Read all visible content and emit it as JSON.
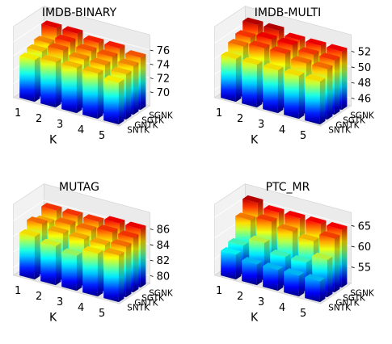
{
  "chart_data": [
    {
      "type": "bar3d",
      "title": "IMDB-BINARY",
      "xlabel": "K",
      "x": [
        1,
        2,
        3,
        4,
        5
      ],
      "y": [
        "SNTK",
        "GNTK",
        "SGTK",
        "SGNK"
      ],
      "z_ticks": [
        70,
        72,
        74,
        76
      ],
      "zlim": [
        68,
        77.5
      ],
      "colormap": "jet",
      "series": [
        {
          "name": "SNTK",
          "values": [
            74.0,
            74.5,
            74.5,
            74.5,
            74.0
          ]
        },
        {
          "name": "GNTK",
          "values": [
            74.5,
            75.5,
            75.0,
            75.0,
            74.5
          ]
        },
        {
          "name": "SGTK",
          "values": [
            75.0,
            76.0,
            75.5,
            75.5,
            75.0
          ]
        },
        {
          "name": "SGNK",
          "values": [
            76.5,
            76.5,
            76.0,
            76.0,
            75.5
          ]
        }
      ]
    },
    {
      "type": "bar3d",
      "title": "IMDB-MULTI",
      "xlabel": "K",
      "x": [
        1,
        2,
        3,
        4,
        5
      ],
      "y": [
        "SNTK",
        "GNTK",
        "SGTK",
        "SGNK"
      ],
      "z_ticks": [
        46,
        48,
        50,
        52
      ],
      "zlim": [
        45,
        53.5
      ],
      "colormap": "jet",
      "series": [
        {
          "name": "SNTK",
          "values": [
            50.5,
            50.5,
            50.5,
            50.5,
            50.5
          ]
        },
        {
          "name": "GNTK",
          "values": [
            51.5,
            52.0,
            52.0,
            51.5,
            51.5
          ]
        },
        {
          "name": "SGTK",
          "values": [
            52.0,
            52.5,
            52.5,
            52.0,
            52.0
          ]
        },
        {
          "name": "SGNK",
          "values": [
            53.0,
            53.0,
            52.5,
            52.5,
            52.5
          ]
        }
      ]
    },
    {
      "type": "bar3d",
      "title": "MUTAG",
      "xlabel": "K",
      "x": [
        1,
        2,
        3,
        4,
        5
      ],
      "y": [
        "SNTK",
        "GNTK",
        "SGTK",
        "SGNK"
      ],
      "z_ticks": [
        80,
        82,
        84,
        86
      ],
      "zlim": [
        79,
        87.5
      ],
      "colormap": "jet",
      "series": [
        {
          "name": "SNTK",
          "values": [
            84.5,
            84.0,
            83.5,
            84.5,
            85.0
          ]
        },
        {
          "name": "GNTK",
          "values": [
            85.5,
            85.0,
            85.0,
            85.0,
            85.5
          ]
        },
        {
          "name": "SGTK",
          "values": [
            85.0,
            85.5,
            85.5,
            86.0,
            86.0
          ]
        },
        {
          "name": "SGNK",
          "values": [
            86.0,
            86.0,
            86.0,
            86.5,
            86.5
          ]
        }
      ]
    },
    {
      "type": "bar3d",
      "title": "PTC_MR",
      "xlabel": "K",
      "x": [
        1,
        2,
        3,
        4,
        5
      ],
      "y": [
        "SNTK",
        "GNTK",
        "SGTK",
        "SGNK"
      ],
      "z_ticks": [
        55,
        60,
        65
      ],
      "zlim": [
        51,
        67
      ],
      "colormap": "jet",
      "series": [
        {
          "name": "SNTK",
          "values": [
            57.0,
            56.0,
            56.0,
            56.0,
            56.0
          ]
        },
        {
          "name": "GNTK",
          "values": [
            58.0,
            60.0,
            58.0,
            58.0,
            60.0
          ]
        },
        {
          "name": "SGTK",
          "values": [
            63.0,
            64.0,
            63.0,
            62.0,
            64.0
          ]
        },
        {
          "name": "SGNK",
          "values": [
            66.0,
            65.0,
            65.0,
            65.0,
            65.0
          ]
        }
      ]
    }
  ]
}
